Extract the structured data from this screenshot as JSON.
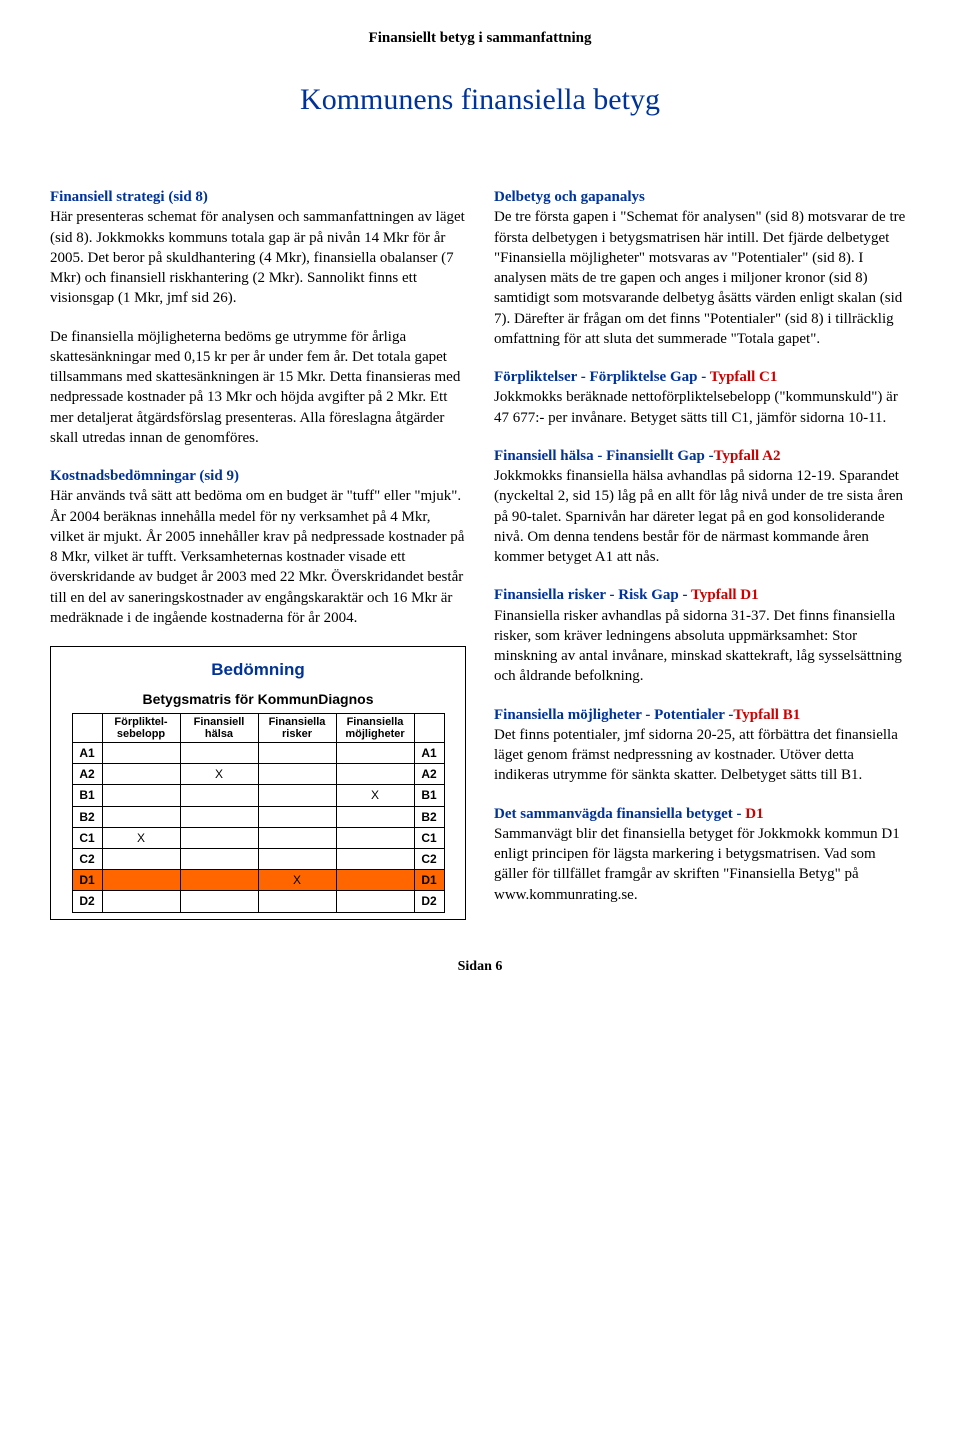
{
  "header": "Finansiellt betyg i sammanfattning",
  "title": "Kommunens finansiella betyg",
  "left": {
    "strategi_head": "Finansiell strategi (sid 8)",
    "strategi_p1": "Här presenteras schemat för analysen och sammanfattningen av läget (sid 8). Jokkmokks kommuns totala gap är på nivån 14 Mkr för år 2005. Det beror på skuldhantering (4 Mkr), finansiella obalanser (7 Mkr) och finansiell riskhantering (2 Mkr). Sannolikt finns ett visionsgap (1 Mkr, jmf sid 26).",
    "strategi_p2": "De finansiella möjligheterna bedöms ge utrymme för årliga skattesänkningar med 0,15 kr per år under fem år. Det totala gapet tillsammans med skattesänkningen är 15 Mkr. Detta finansieras med nedpressade kostnader på 13 Mkr och höjda avgifter på 2 Mkr. Ett mer detaljerat åtgärdsförslag presenteras. Alla föreslagna åtgärder skall utredas innan de genomföres.",
    "kostnad_head": "Kostnadsbedömningar (sid 9)",
    "kostnad_p": "Här används två sätt att bedöma om en budget är \"tuff\" eller \"mjuk\". År 2004 beräknas innehålla medel för ny verksamhet på 4 Mkr, vilket är mjukt. År 2005 innehåller krav på nedpressade kostnader på 8 Mkr, vilket är tufft. Verksamheternas kostnader visade ett överskridande av budget år 2003 med 22 Mkr. Överskridandet består till en del av saneringskostnader av engångskaraktär och 16 Mkr är medräknade i de ingående kostnaderna för år 2004."
  },
  "right": {
    "delbetyg_head": "Delbetyg och gapanalys",
    "delbetyg_p": "De tre första gapen i \"Schemat för analysen\" (sid 8) motsvarar de tre första delbetygen i betygsmatrisen här intill. Det fjärde delbetyget \"Finansiella möjligheter\" motsvaras av \"Potentialer\" (sid 8). I analysen mäts de tre gapen och anges i miljoner kronor (sid 8) samtidigt som motsvarande delbetyg åsätts värden enligt skalan (sid 7). Därefter är frågan om det finns \"Potentialer\" (sid 8) i tillräcklig omfattning för att sluta det summerade \"Totala gapet\".",
    "forpl_head": "Förpliktelser - Förpliktelse Gap - ",
    "forpl_typ": "Typfall C1",
    "forpl_p": "Jokkmokks beräknade nettoförpliktelsebelopp (\"kommunskuld\") är 47 677:- per invånare. Betyget sätts till C1, jämför sidorna 10-11.",
    "halsa_head": "Finansiell hälsa - Finansiellt Gap -",
    "halsa_typ": "Typfall A2",
    "halsa_p": "Jokkmokks finansiella hälsa avhandlas på sidorna 12-19. Sparandet (nyckeltal 2, sid 15) låg på en allt för låg nivå under de tre sista åren på 90-talet. Sparnivån har däreter legat på en god konsoliderande nivå. Om denna tendens består för de närmast kommande åren kommer betyget A1 att nås.",
    "risk_head": "Finansiella risker - Risk Gap - ",
    "risk_typ": "Typfall D1",
    "risk_p": "Finansiella risker avhandlas på sidorna 31-37. Det finns finansiella risker, som kräver ledningens absoluta uppmärksamhet: Stor minskning av antal invånare, minskad skattekraft, låg sysselsättning och åldrande befolkning.",
    "mojl_head": "Finansiella möjligheter - Potentialer -",
    "mojl_typ": "Typfall B1",
    "mojl_p": "Det finns potentialer, jmf sidorna 20-25, att förbättra det finansiella läget genom främst nedpressning av kostnader. Utöver detta indikeras utrymme för sänkta skatter. Delbetyget sätts till B1.",
    "samman_head": "Det sammanvägda finansiella betyget - ",
    "samman_typ": "D1",
    "samman_p": "Sammanvägt blir det finansiella betyget för Jokkmokk kommun D1 enligt principen för lägsta markering i betygsmatrisen. Vad som gäller för tillfället framgår av skriften \"Finansiella Betyg\" på www.kommunrating.se."
  },
  "bedomning": {
    "title": "Bedömning",
    "subtitle": "Betygsmatris för KommunDiagnos",
    "col1a": "Förpliktel-",
    "col1b": "sebelopp",
    "col2a": "Finansiell",
    "col2b": "hälsa",
    "col3a": "Finansiella",
    "col3b": "risker",
    "col4a": "Finansiella",
    "col4b": "möjligheter",
    "rows": [
      "A1",
      "A2",
      "B1",
      "B2",
      "C1",
      "C2",
      "D1",
      "D2"
    ],
    "marks": {
      "A2": {
        "col": 1
      },
      "B1": {
        "col": 3
      },
      "C1": {
        "col": 0
      },
      "D1": {
        "col": 2
      }
    },
    "highlight_row": "D1",
    "highlight_color": "#ff6600",
    "X": "X"
  },
  "footer": "Sidan 6"
}
